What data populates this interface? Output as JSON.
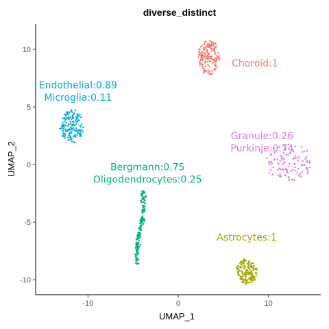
{
  "chart_data": {
    "type": "scatter",
    "title": "diverse_distinct",
    "xlabel": "UMAP_1",
    "ylabel": "UMAP_2",
    "xlim": [
      -15.8,
      15.8
    ],
    "ylim": [
      -11.3,
      12.2
    ],
    "xticks": [
      -10,
      0,
      10
    ],
    "yticks": [
      -10,
      -5,
      0,
      5,
      10
    ],
    "grid": false,
    "legend": "none",
    "clusters": [
      {
        "id": "choroid",
        "color": "#F8766D",
        "center": [
          3.4,
          9.3
        ],
        "spread": [
          1.2,
          1.5
        ],
        "shape": "oval",
        "count": 150,
        "label_lines": [
          "Choroid:1"
        ],
        "label_anchor": [
          8.5,
          8.5
        ],
        "label_align": "middle"
      },
      {
        "id": "endothelial-microglia",
        "color": "#00A9E0",
        "center": [
          -11.8,
          3.3
        ],
        "spread": [
          1.3,
          1.4
        ],
        "shape": "oval",
        "count": 150,
        "label_lines": [
          "Endothelial:0.89",
          "Microglia:0.11"
        ],
        "label_anchor": [
          -11.1,
          6.6
        ],
        "label_align": "middle"
      },
      {
        "id": "granule-purkinje",
        "color": "#D977E3",
        "center": [
          12.3,
          0.2
        ],
        "spread": [
          2.6,
          1.6
        ],
        "shape": "oval",
        "count": 110,
        "label_lines": [
          "Granule:0.26",
          "Purkinje:0.74"
        ],
        "label_anchor": [
          9.3,
          2.2
        ],
        "label_align": "middle"
      },
      {
        "id": "bergmann-oligodendrocytes",
        "color": "#00B27C",
        "center": [
          -4.2,
          -5.5
        ],
        "spread": [
          0.7,
          3.2
        ],
        "shape": "curve",
        "count": 170,
        "label_lines": [
          "Bergmann:0.75",
          "Oligodendrocytes:0.25"
        ],
        "label_anchor": [
          -3.4,
          -0.5
        ],
        "label_align": "middle"
      },
      {
        "id": "astrocytes",
        "color": "#A3A500",
        "center": [
          7.6,
          -9.3
        ],
        "spread": [
          1.1,
          1.1
        ],
        "shape": "oval",
        "count": 140,
        "label_lines": [
          "Astrocytes:1"
        ],
        "label_anchor": [
          7.6,
          -6.6
        ],
        "label_align": "middle"
      }
    ]
  }
}
